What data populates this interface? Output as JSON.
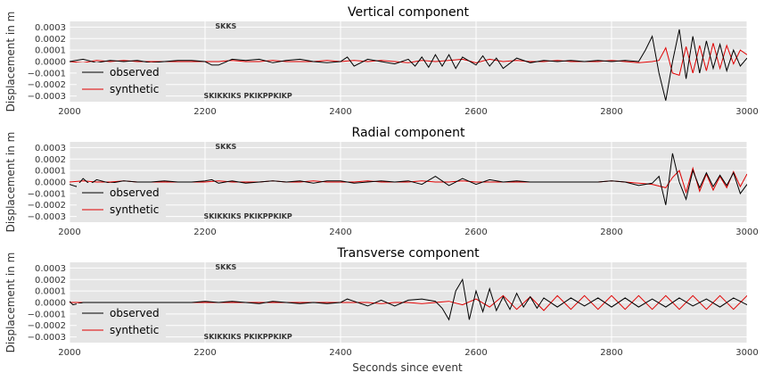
{
  "figure": {
    "xlabel": "Seconds since event",
    "ylabel": "Displacement in m"
  },
  "chart_data": [
    {
      "type": "line",
      "title": "Vertical component",
      "xlabel": "",
      "ylabel": "Displacement in m",
      "xlim": [
        2000,
        3000
      ],
      "ylim": [
        -0.00035,
        0.00035
      ],
      "x_ticks": [
        2000,
        2200,
        2400,
        2600,
        2800,
        3000
      ],
      "y_ticks": [
        0.0003,
        0.0002,
        0.0001,
        0.0,
        -0.0001,
        -0.0002,
        -0.0003
      ],
      "x_tick_labels": [
        "2000",
        "2200",
        "2400",
        "2600",
        "2800",
        "3000"
      ],
      "y_tick_labels": [
        "0.0003",
        "0.0002",
        "0.0001",
        "0.0000",
        "−0.0001",
        "−0.0002",
        "−0.0003"
      ],
      "grid": true,
      "legend_position": "lower-left",
      "phase_labels": [
        {
          "text": "SKKS",
          "x": 2215,
          "position": "top"
        },
        {
          "text": "SKIKKIKS PKIKPPKIKP",
          "x": 2198,
          "position": "bottom"
        }
      ],
      "series": [
        {
          "name": "observed",
          "color": "#000000",
          "x": [
            2000,
            2020,
            2040,
            2060,
            2080,
            2100,
            2120,
            2140,
            2160,
            2180,
            2200,
            2210,
            2220,
            2240,
            2260,
            2280,
            2300,
            2320,
            2340,
            2360,
            2380,
            2400,
            2410,
            2420,
            2440,
            2460,
            2480,
            2500,
            2510,
            2520,
            2530,
            2540,
            2550,
            2560,
            2570,
            2580,
            2600,
            2610,
            2620,
            2630,
            2640,
            2660,
            2680,
            2700,
            2720,
            2740,
            2760,
            2780,
            2800,
            2820,
            2840,
            2850,
            2860,
            2870,
            2880,
            2890,
            2900,
            2910,
            2920,
            2930,
            2940,
            2950,
            2960,
            2970,
            2980,
            2990,
            3000
          ],
          "y": [
            0.0,
            2e-05,
            -1e-05,
            1e-05,
            0.0,
            1e-05,
            -1e-05,
            0.0,
            1e-05,
            1e-05,
            0.0,
            -3e-05,
            -3e-05,
            2e-05,
            1e-05,
            2e-05,
            -1e-05,
            1e-05,
            2e-05,
            0.0,
            -1e-05,
            0.0,
            4e-05,
            -4e-05,
            2e-05,
            0.0,
            -2e-05,
            2e-05,
            -4e-05,
            4e-05,
            -5e-05,
            6e-05,
            -4e-05,
            6e-05,
            -6e-05,
            4e-05,
            -3e-05,
            5e-05,
            -4e-05,
            3e-05,
            -6e-05,
            3e-05,
            -1e-05,
            1e-05,
            0.0,
            1e-05,
            0.0,
            1e-05,
            0.0,
            1e-05,
            0.0,
            0.0001,
            0.00022,
            -0.0001,
            -0.00034,
            0.0,
            0.00028,
            -0.00015,
            0.00022,
            -0.0001,
            0.00018,
            -6e-05,
            0.00015,
            -8e-05,
            0.0001,
            -4e-05,
            3e-05
          ]
        },
        {
          "name": "synthetic",
          "color": "#e00000",
          "x": [
            2000,
            2020,
            2040,
            2060,
            2080,
            2100,
            2120,
            2140,
            2160,
            2180,
            2200,
            2220,
            2240,
            2260,
            2280,
            2300,
            2320,
            2340,
            2360,
            2380,
            2400,
            2420,
            2440,
            2460,
            2480,
            2500,
            2520,
            2540,
            2560,
            2580,
            2600,
            2620,
            2640,
            2660,
            2680,
            2700,
            2720,
            2740,
            2760,
            2780,
            2800,
            2820,
            2840,
            2860,
            2870,
            2880,
            2890,
            2900,
            2910,
            2920,
            2930,
            2940,
            2950,
            2960,
            2970,
            2980,
            2990,
            3000
          ],
          "y": [
            0.0,
            -1e-05,
            1e-05,
            0.0,
            1e-05,
            0.0,
            0.0,
            0.0,
            0.0,
            0.0,
            0.0,
            0.0,
            1e-05,
            0.0,
            0.0,
            1e-05,
            0.0,
            0.0,
            0.0,
            1e-05,
            0.0,
            1e-05,
            0.0,
            1e-05,
            0.0,
            -1e-05,
            1e-05,
            0.0,
            1e-05,
            2e-05,
            -1e-05,
            2e-05,
            0.0,
            1e-05,
            0.0,
            0.0,
            1e-05,
            0.0,
            0.0,
            0.0,
            1e-05,
            0.0,
            -1e-05,
            0.0,
            1e-05,
            0.00012,
            -0.0001,
            -0.00012,
            0.00013,
            -0.0001,
            0.00014,
            -8e-05,
            0.00016,
            -6e-05,
            0.00014,
            -2e-05,
            0.0001,
            6e-05
          ]
        }
      ]
    },
    {
      "type": "line",
      "title": "Radial component",
      "xlabel": "",
      "ylabel": "Displacement in m",
      "xlim": [
        2000,
        3000
      ],
      "ylim": [
        -0.00035,
        0.00035
      ],
      "x_ticks": [
        2000,
        2200,
        2400,
        2600,
        2800,
        3000
      ],
      "y_ticks": [
        0.0003,
        0.0002,
        0.0001,
        0.0,
        -0.0001,
        -0.0002,
        -0.0003
      ],
      "x_tick_labels": [
        "2000",
        "2200",
        "2400",
        "2600",
        "2800",
        "3000"
      ],
      "y_tick_labels": [
        "0.0003",
        "0.0002",
        "0.0001",
        "0.0000",
        "−0.0001",
        "−0.0002",
        "−0.0003"
      ],
      "grid": true,
      "legend_position": "lower-left",
      "phase_labels": [
        {
          "text": "SKKS",
          "x": 2215,
          "position": "top"
        },
        {
          "text": "SKIKKIKS PKIKPPKIKP",
          "x": 2198,
          "position": "bottom"
        }
      ],
      "series": [
        {
          "name": "observed",
          "color": "#000000",
          "x": [
            2000,
            2010,
            2020,
            2030,
            2040,
            2060,
            2080,
            2100,
            2120,
            2140,
            2160,
            2180,
            2200,
            2210,
            2220,
            2240,
            2260,
            2280,
            2300,
            2320,
            2340,
            2360,
            2380,
            2400,
            2420,
            2440,
            2460,
            2480,
            2500,
            2520,
            2540,
            2560,
            2580,
            2600,
            2620,
            2640,
            2660,
            2680,
            2700,
            2720,
            2740,
            2760,
            2780,
            2800,
            2820,
            2840,
            2860,
            2870,
            2880,
            2890,
            2900,
            2910,
            2920,
            2930,
            2940,
            2950,
            2960,
            2970,
            2980,
            2990,
            3000
          ],
          "y": [
            -2e-05,
            -4e-05,
            3e-05,
            -2e-05,
            2e-05,
            -1e-05,
            1e-05,
            0.0,
            0.0,
            1e-05,
            0.0,
            0.0,
            1e-05,
            2e-05,
            -1e-05,
            1e-05,
            -1e-05,
            0.0,
            1e-05,
            0.0,
            1e-05,
            -1e-05,
            1e-05,
            1e-05,
            -1e-05,
            0.0,
            1e-05,
            0.0,
            1e-05,
            -2e-05,
            5e-05,
            -3e-05,
            3e-05,
            -2e-05,
            2e-05,
            0.0,
            1e-05,
            0.0,
            0.0,
            0.0,
            0.0,
            0.0,
            0.0,
            1e-05,
            0.0,
            -3e-05,
            -1e-05,
            5e-05,
            -0.0002,
            0.00025,
            0.0,
            -0.00015,
            0.0001,
            -5e-05,
            8e-05,
            -4e-05,
            6e-05,
            -3e-05,
            8e-05,
            -0.0001,
            -2e-05
          ]
        },
        {
          "name": "synthetic",
          "color": "#e00000",
          "x": [
            2000,
            2020,
            2040,
            2060,
            2080,
            2100,
            2120,
            2140,
            2160,
            2180,
            2200,
            2220,
            2240,
            2260,
            2280,
            2300,
            2320,
            2340,
            2360,
            2380,
            2400,
            2420,
            2440,
            2460,
            2480,
            2500,
            2520,
            2540,
            2560,
            2580,
            2600,
            2620,
            2640,
            2660,
            2680,
            2700,
            2720,
            2740,
            2760,
            2780,
            2800,
            2820,
            2840,
            2860,
            2880,
            2890,
            2900,
            2910,
            2920,
            2930,
            2940,
            2950,
            2960,
            2970,
            2980,
            2990,
            3000
          ],
          "y": [
            0.0,
            1e-05,
            0.0,
            0.0,
            1e-05,
            0.0,
            0.0,
            0.0,
            0.0,
            0.0,
            0.0,
            1e-05,
            0.0,
            0.0,
            0.0,
            1e-05,
            0.0,
            0.0,
            1e-05,
            0.0,
            0.0,
            0.0,
            1e-05,
            0.0,
            0.0,
            0.0,
            1e-05,
            0.0,
            0.0,
            1e-05,
            0.0,
            0.0,
            0.0,
            0.0,
            0.0,
            0.0,
            0.0,
            0.0,
            0.0,
            0.0,
            1e-05,
            0.0,
            -1e-05,
            -2e-05,
            -5e-05,
            4e-05,
            0.0001,
            -9e-05,
            0.00012,
            -8e-05,
            7e-05,
            -7e-05,
            5e-05,
            -5e-05,
            9e-05,
            -4e-05,
            7e-05
          ]
        }
      ]
    },
    {
      "type": "line",
      "title": "Transverse component",
      "xlabel": "Seconds since event",
      "ylabel": "Displacement in m",
      "xlim": [
        2000,
        3000
      ],
      "ylim": [
        -0.00035,
        0.00035
      ],
      "x_ticks": [
        2000,
        2200,
        2400,
        2600,
        2800,
        3000
      ],
      "y_ticks": [
        0.0003,
        0.0002,
        0.0001,
        0.0,
        -0.0001,
        -0.0002,
        -0.0003
      ],
      "x_tick_labels": [
        "2000",
        "2200",
        "2400",
        "2600",
        "2800",
        "3000"
      ],
      "y_tick_labels": [
        "0.0003",
        "0.0002",
        "0.0001",
        "0.0000",
        "−0.0001",
        "−0.0002",
        "−0.0003"
      ],
      "grid": true,
      "legend_position": "lower-left",
      "phase_labels": [
        {
          "text": "SKKS",
          "x": 2215,
          "position": "top"
        },
        {
          "text": "SKIKKIKS PKIKPPKIKP",
          "x": 2198,
          "position": "bottom"
        }
      ],
      "series": [
        {
          "name": "observed",
          "color": "#000000",
          "x": [
            2000,
            2005,
            2020,
            2040,
            2060,
            2080,
            2100,
            2120,
            2140,
            2160,
            2180,
            2200,
            2220,
            2240,
            2260,
            2280,
            2300,
            2320,
            2340,
            2360,
            2380,
            2400,
            2410,
            2420,
            2440,
            2460,
            2480,
            2500,
            2520,
            2540,
            2550,
            2560,
            2570,
            2580,
            2590,
            2600,
            2610,
            2620,
            2630,
            2640,
            2650,
            2660,
            2670,
            2680,
            2690,
            2700,
            2720,
            2740,
            2760,
            2780,
            2800,
            2820,
            2840,
            2860,
            2880,
            2900,
            2920,
            2940,
            2960,
            2980,
            3000
          ],
          "y": [
            1e-05,
            -2e-05,
            0.0,
            0.0,
            0.0,
            0.0,
            0.0,
            0.0,
            0.0,
            0.0,
            0.0,
            1e-05,
            0.0,
            1e-05,
            0.0,
            -1e-05,
            1e-05,
            0.0,
            -1e-05,
            0.0,
            -1e-05,
            0.0,
            3e-05,
            1e-05,
            -3e-05,
            2e-05,
            -3e-05,
            2e-05,
            3e-05,
            1e-05,
            -5e-05,
            -0.00015,
            0.0001,
            0.0002,
            -0.00015,
            0.0001,
            -8e-05,
            0.00012,
            -7e-05,
            5e-05,
            -6e-05,
            8e-05,
            -4e-05,
            5e-05,
            -5e-05,
            4e-05,
            -4e-05,
            4e-05,
            -3e-05,
            4e-05,
            -4e-05,
            4e-05,
            -4e-05,
            3e-05,
            -4e-05,
            4e-05,
            -3e-05,
            3e-05,
            -4e-05,
            4e-05,
            -2e-05
          ]
        },
        {
          "name": "synthetic",
          "color": "#e00000",
          "x": [
            2000,
            2020,
            2040,
            2060,
            2080,
            2100,
            2120,
            2140,
            2160,
            2180,
            2200,
            2220,
            2240,
            2260,
            2280,
            2300,
            2320,
            2340,
            2360,
            2380,
            2400,
            2420,
            2440,
            2460,
            2480,
            2500,
            2520,
            2540,
            2560,
            2580,
            2600,
            2620,
            2640,
            2660,
            2680,
            2700,
            2720,
            2740,
            2760,
            2780,
            2800,
            2820,
            2840,
            2860,
            2880,
            2900,
            2920,
            2940,
            2960,
            2980,
            3000
          ],
          "y": [
            0.0,
            0.0,
            0.0,
            0.0,
            0.0,
            0.0,
            0.0,
            0.0,
            0.0,
            0.0,
            0.0,
            0.0,
            0.0,
            0.0,
            0.0,
            0.0,
            0.0,
            0.0,
            0.0,
            0.0,
            0.0,
            0.0,
            0.0,
            -1e-05,
            0.0,
            0.0,
            -1e-05,
            0.0,
            1e-05,
            -2e-05,
            3e-05,
            -4e-05,
            6e-05,
            -6e-05,
            5e-05,
            -7e-05,
            6e-05,
            -6e-05,
            6e-05,
            -6e-05,
            6e-05,
            -6e-05,
            6e-05,
            -6e-05,
            6e-05,
            -6e-05,
            6e-05,
            -6e-05,
            6e-05,
            -6e-05,
            6e-05
          ]
        }
      ]
    }
  ]
}
